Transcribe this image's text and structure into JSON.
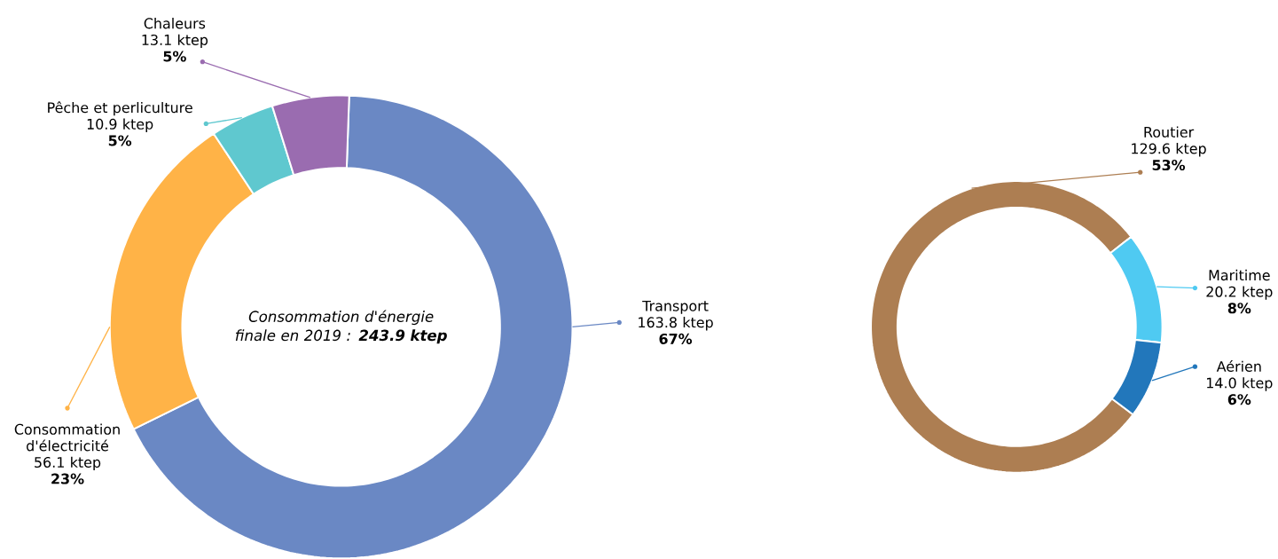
{
  "chart_data": [
    {
      "type": "donut",
      "title": "Consommation d'énergie finale en 2019 : **243.9 ktep**",
      "categories": [
        "Transport",
        "Consommation d'électricité",
        "Pêche et perliculture",
        "Chaleurs"
      ],
      "values": [
        163.8,
        56.1,
        10.9,
        13.1
      ],
      "colors": [
        "#6a88c4",
        "#ffb347",
        "#5fc8cf",
        "#9a6cb0"
      ],
      "value_labels": [
        "163.8 ktep",
        "56.1 ktep",
        "10.9 ktep",
        "13.1 ktep"
      ],
      "annotations": [
        "67%",
        "23%",
        "5%",
        "5%"
      ]
    },
    {
      "type": "donut",
      "categories": [
        "Routier",
        "Maritime",
        "Aérien"
      ],
      "values": [
        129.6,
        20.2,
        14.0
      ],
      "colors": [
        "#ad7e52",
        "#4fcaf2",
        "#2277bb"
      ],
      "value_labels": [
        "129.6 ktep",
        "20.2 ktep",
        "14.0 ktep"
      ],
      "annotations": [
        "53%",
        "8%",
        "6%"
      ]
    }
  ]
}
